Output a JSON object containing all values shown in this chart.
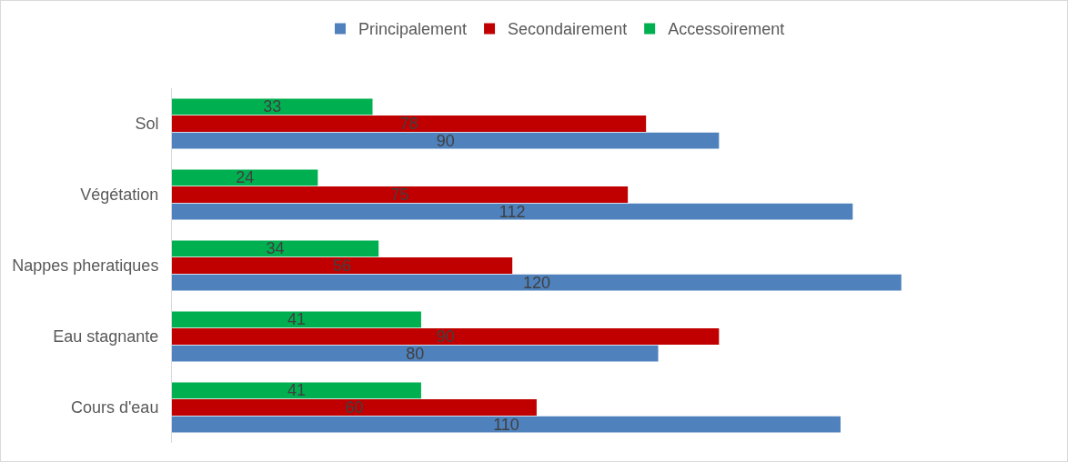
{
  "chart_data": {
    "type": "bar",
    "orientation": "horizontal",
    "categories": [
      "Sol",
      "Végétation",
      "Nappes pheratiques",
      "Eau stagnante",
      "Cours d'eau"
    ],
    "series": [
      {
        "name": "Principalement",
        "color": "#4f81bd",
        "values": [
          90,
          112,
          120,
          80,
          110
        ]
      },
      {
        "name": "Secondairement",
        "color": "#c00000",
        "values": [
          78,
          75,
          56,
          90,
          60
        ]
      },
      {
        "name": "Accessoirement",
        "color": "#00b050",
        "values": [
          33,
          24,
          34,
          41,
          41
        ]
      }
    ],
    "data_labels": true,
    "legend": "top"
  }
}
